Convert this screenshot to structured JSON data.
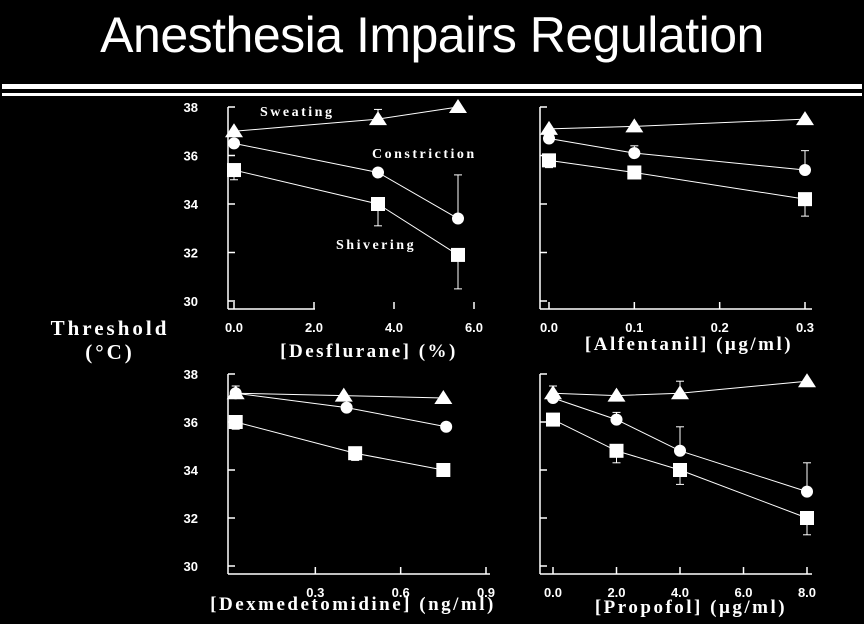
{
  "title": "Anesthesia Impairs Regulation",
  "y_axis_label": {
    "line1": "Threshold",
    "line2": "(°C)"
  },
  "chart_data": [
    {
      "type": "line",
      "xlabel": "[Desflurane] (%)",
      "xlim": [
        0,
        6
      ],
      "ylim": [
        30,
        38
      ],
      "x_ticks": [
        "0.0",
        "2.0",
        "4.0",
        "6.0"
      ],
      "x_tick_values": [
        0,
        2,
        4,
        6
      ],
      "y_ticks": [
        "38",
        "36",
        "34",
        "32",
        "30"
      ],
      "y_tick_values": [
        38,
        36,
        34,
        32,
        30
      ],
      "series": [
        {
          "name": "Sweating",
          "marker": "triangle",
          "x": [
            0,
            3.6,
            5.6
          ],
          "y": [
            37.0,
            37.5,
            38.0
          ],
          "err": [
            0,
            0.4,
            0
          ]
        },
        {
          "name": "Constriction",
          "marker": "circle",
          "x": [
            0,
            3.6,
            5.6
          ],
          "y": [
            36.5,
            35.3,
            33.4
          ],
          "err": [
            0,
            0,
            1.8
          ]
        },
        {
          "name": "Shivering",
          "marker": "square",
          "x": [
            0,
            3.6,
            5.6
          ],
          "y": [
            35.4,
            34.0,
            31.9
          ],
          "err": [
            0.4,
            0.9,
            1.4
          ]
        }
      ]
    },
    {
      "type": "line",
      "xlabel": "[Alfentanil] (µg/ml)",
      "xlim": [
        0,
        0.3
      ],
      "ylim": [
        30,
        38
      ],
      "x_ticks": [
        "0.0",
        "0.1",
        "0.2",
        "0.3"
      ],
      "x_tick_values": [
        0,
        0.1,
        0.2,
        0.3
      ],
      "series": [
        {
          "marker": "triangle",
          "x": [
            0,
            0.1,
            0.3
          ],
          "y": [
            37.1,
            37.2,
            37.5
          ],
          "err": [
            0,
            0,
            0
          ]
        },
        {
          "marker": "circle",
          "x": [
            0,
            0.1,
            0.3
          ],
          "y": [
            36.7,
            36.1,
            35.4
          ],
          "err": [
            0,
            0.3,
            0.8
          ]
        },
        {
          "marker": "square",
          "x": [
            0,
            0.1,
            0.3
          ],
          "y": [
            35.8,
            35.3,
            34.2
          ],
          "err": [
            0.3,
            0,
            0.7
          ]
        }
      ]
    },
    {
      "type": "line",
      "xlabel": "[Dexmedetomidine] (ng/ml)",
      "xlim": [
        0,
        0.9
      ],
      "ylim": [
        30,
        38
      ],
      "x_ticks": [
        "0.3",
        "0.6",
        "0.9"
      ],
      "x_tick_values": [
        0.3,
        0.6,
        0.9
      ],
      "y_ticks": [
        "38",
        "36",
        "34",
        "32",
        "30"
      ],
      "y_tick_values": [
        38,
        36,
        34,
        32,
        30
      ],
      "series": [
        {
          "marker": "triangle",
          "x": [
            0.02,
            0.4,
            0.75
          ],
          "y": [
            37.2,
            37.1,
            37.0
          ],
          "err": [
            0,
            0,
            0
          ]
        },
        {
          "marker": "circle",
          "x": [
            0.02,
            0.41,
            0.76
          ],
          "y": [
            37.2,
            36.6,
            35.8
          ],
          "err": [
            0.3,
            0.3,
            0
          ]
        },
        {
          "marker": "square",
          "x": [
            0.02,
            0.44,
            0.75
          ],
          "y": [
            36.0,
            34.7,
            34.0
          ],
          "err": [
            0.3,
            0.3,
            0.2
          ]
        }
      ]
    },
    {
      "type": "line",
      "xlabel": "[Propofol] (µg/ml)",
      "xlim": [
        0,
        8
      ],
      "ylim": [
        30,
        38
      ],
      "x_ticks": [
        "0.0",
        "2.0",
        "4.0",
        "6.0",
        "8.0"
      ],
      "x_tick_values": [
        0,
        2,
        4,
        6,
        8
      ],
      "series": [
        {
          "marker": "triangle",
          "x": [
            0,
            2,
            4,
            8
          ],
          "y": [
            37.2,
            37.1,
            37.2,
            37.7
          ],
          "err": [
            0.3,
            0,
            0.5,
            0
          ]
        },
        {
          "marker": "circle",
          "x": [
            0,
            2,
            4,
            8
          ],
          "y": [
            37.0,
            36.1,
            34.8,
            33.1
          ],
          "err": [
            0,
            0.3,
            1.0,
            1.2
          ]
        },
        {
          "marker": "square",
          "x": [
            0,
            2,
            4,
            8
          ],
          "y": [
            36.1,
            34.8,
            34.0,
            32.0
          ],
          "err": [
            0,
            0.5,
            0.6,
            0.7
          ]
        }
      ]
    }
  ]
}
